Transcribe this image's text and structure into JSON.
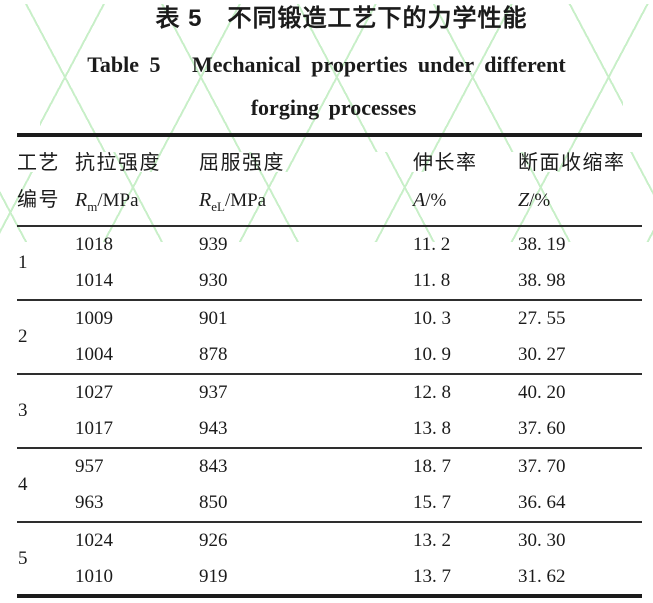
{
  "colors": {
    "ink": "#1b1b1b",
    "rule": "#2e2e2e",
    "wm": "#9ce39c",
    "bg": "#ffffff"
  },
  "title": {
    "zh": "表 5　不同锻造工艺下的力学性能",
    "en_line1": "Table 5   Mechanical properties under different",
    "en_line2": "forging processes"
  },
  "table": {
    "columns": [
      {
        "id": "process",
        "line1": "工艺",
        "line2_text": "编号"
      },
      {
        "id": "rm",
        "line1": "抗拉强度",
        "symbol": "R",
        "subscript": "m",
        "unit": "/MPa"
      },
      {
        "id": "rel",
        "line1": "屈服强度",
        "symbol": "R",
        "subscript": "eL",
        "unit": "/MPa"
      },
      {
        "id": "elongation",
        "line1": "伸长率",
        "symbol": "A",
        "subscript": "",
        "unit": "/%"
      },
      {
        "id": "reduction",
        "line1": "断面收缩率",
        "symbol": "Z",
        "subscript": "",
        "unit": "/%"
      }
    ],
    "groups": [
      {
        "no": "1",
        "rows": [
          [
            "1018",
            "939",
            "11. 2",
            "38. 19"
          ],
          [
            "1014",
            "930",
            "11. 8",
            "38. 98"
          ]
        ]
      },
      {
        "no": "2",
        "rows": [
          [
            "1009",
            "901",
            "10. 3",
            "27. 55"
          ],
          [
            "1004",
            "878",
            "10. 9",
            "30. 27"
          ]
        ]
      },
      {
        "no": "3",
        "rows": [
          [
            "1027",
            "937",
            "12. 8",
            "40. 20"
          ],
          [
            "1017",
            "943",
            "13. 8",
            "37. 60"
          ]
        ]
      },
      {
        "no": "4",
        "rows": [
          [
            "957",
            "843",
            "18. 7",
            "37. 70"
          ],
          [
            "963",
            "850",
            "15. 7",
            "36. 64"
          ]
        ]
      },
      {
        "no": "5",
        "rows": [
          [
            "1024",
            "926",
            "13. 2",
            "30. 30"
          ],
          [
            "1010",
            "919",
            "13. 7",
            "31. 62"
          ]
        ]
      }
    ]
  }
}
